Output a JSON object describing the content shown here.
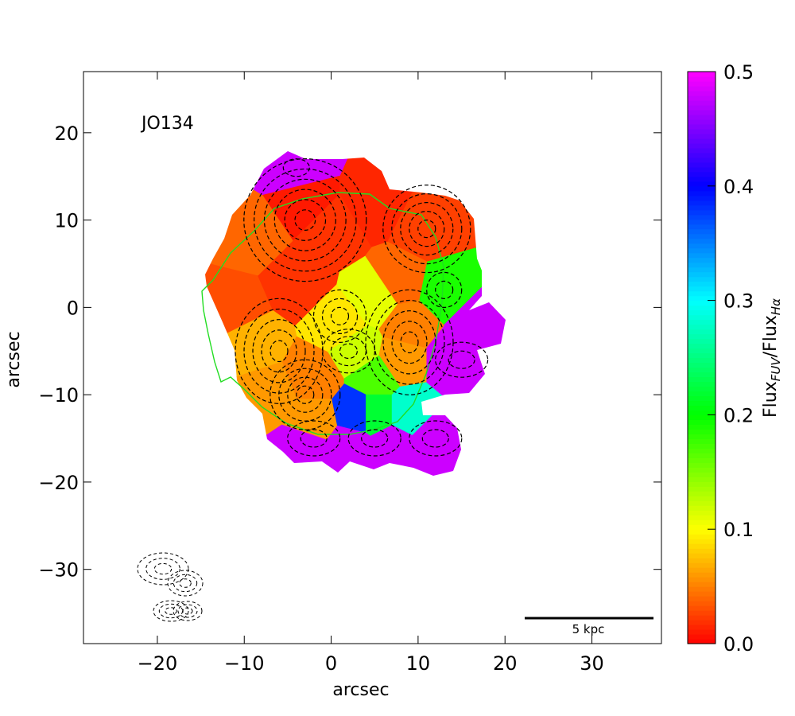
{
  "chart_data": {
    "type": "heatmap",
    "title": "",
    "annotation": "JO134",
    "xlabel": "arcsec",
    "ylabel": "arcsec",
    "xlim": [
      -28.5,
      38
    ],
    "ylim": [
      -38.5,
      27
    ],
    "x_ticks": [
      -20,
      -10,
      0,
      10,
      20,
      30
    ],
    "y_ticks": [
      -30,
      -20,
      -10,
      0,
      10,
      20
    ],
    "x_tick_labels": [
      "−20",
      "−10",
      "0",
      "10",
      "20",
      "30"
    ],
    "y_tick_labels": [
      "−30",
      "−20",
      "−10",
      "0",
      "10",
      "20"
    ],
    "grid": false,
    "colorbar": {
      "label_main": "Flux",
      "label_sub1": "FUV",
      "label_mid": "/Flux",
      "label_sub2": "Hα",
      "range": [
        0.0,
        0.5
      ],
      "ticks": [
        0.0,
        0.1,
        0.2,
        0.3,
        0.4,
        0.5
      ],
      "tick_labels": [
        "0.0",
        "0.1",
        "0.2",
        "0.3",
        "0.4",
        "0.5"
      ],
      "colormap": "gist_rainbow (red → magenta)"
    },
    "scale_bar": {
      "label": "5 kpc",
      "x_start": 22.5,
      "x_end": 37.2,
      "y": -35
    },
    "contour_color": "#000000",
    "outline_color": "#22dd22",
    "regions": [
      {
        "x": -3,
        "y": 12,
        "value": 0.01
      },
      {
        "x": -9,
        "y": 8,
        "value": 0.04
      },
      {
        "x": -11,
        "y": 0,
        "value": 0.03
      },
      {
        "x": -4,
        "y": 3,
        "value": 0.02
      },
      {
        "x": 0,
        "y": 9,
        "value": 0.02
      },
      {
        "x": 5,
        "y": 12,
        "value": 0.015
      },
      {
        "x": 11,
        "y": 9,
        "value": 0.025
      },
      {
        "x": 8,
        "y": 3,
        "value": 0.04
      },
      {
        "x": -9,
        "y": -4,
        "value": 0.07
      },
      {
        "x": -7,
        "y": -10,
        "value": 0.06
      },
      {
        "x": -2,
        "y": -8,
        "value": 0.05
      },
      {
        "x": -2,
        "y": -13,
        "value": 0.06
      },
      {
        "x": 1,
        "y": -2,
        "value": 0.09
      },
      {
        "x": 5,
        "y": 1,
        "value": 0.11
      },
      {
        "x": 3,
        "y": -5,
        "value": 0.12
      },
      {
        "x": 8,
        "y": -6,
        "value": 0.06
      },
      {
        "x": 9,
        "y": -2,
        "value": 0.05
      },
      {
        "x": 5,
        "y": -8,
        "value": 0.17
      },
      {
        "x": 13,
        "y": 2,
        "value": 0.19
      },
      {
        "x": 3,
        "y": -12,
        "value": 0.38
      },
      {
        "x": 5,
        "y": -12,
        "value": 0.22
      },
      {
        "x": 9,
        "y": -12,
        "value": 0.28
      },
      {
        "x": -4,
        "y": 16,
        "value": 0.48
      },
      {
        "x": 14,
        "y": -6,
        "value": 0.48
      },
      {
        "x": 17,
        "y": -2,
        "value": 0.48
      },
      {
        "x": -3,
        "y": -16,
        "value": 0.48
      },
      {
        "x": 2,
        "y": -16,
        "value": 0.48
      },
      {
        "x": 7,
        "y": -16,
        "value": 0.48
      },
      {
        "x": 12,
        "y": -15,
        "value": 0.48
      }
    ]
  }
}
